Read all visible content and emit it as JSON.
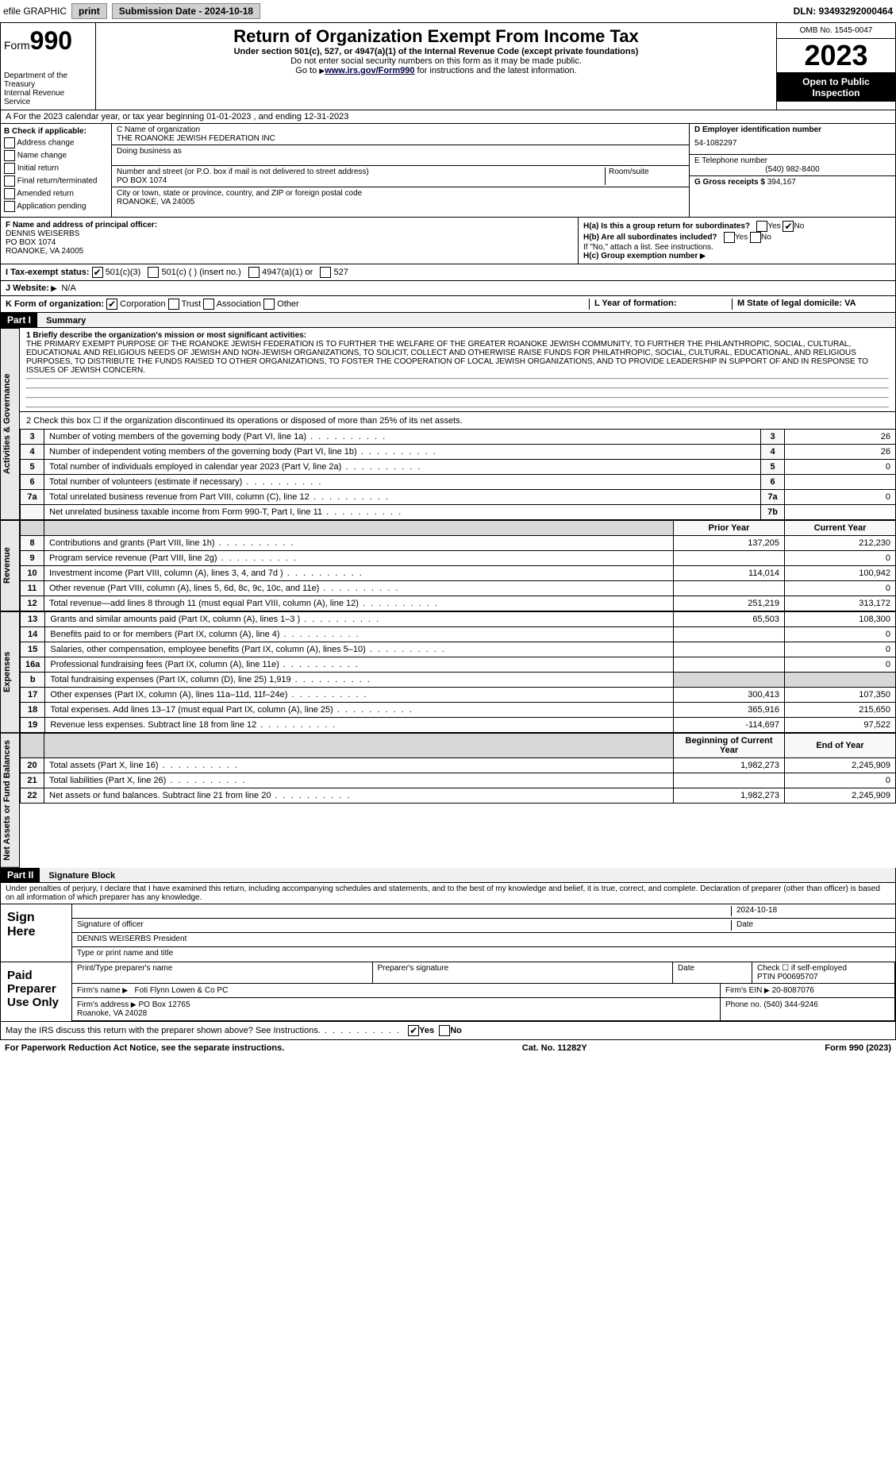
{
  "topbar": {
    "efile": "efile GRAPHIC",
    "print": "print",
    "submission_label": "Submission Date - 2024-10-18",
    "dln": "DLN: 93493292000464"
  },
  "header": {
    "form_word": "Form",
    "form_num": "990",
    "dept": "Department of the Treasury\nInternal Revenue Service",
    "title": "Return of Organization Exempt From Income Tax",
    "sub1": "Under section 501(c), 527, or 4947(a)(1) of the Internal Revenue Code (except private foundations)",
    "sub2": "Do not enter social security numbers on this form as it may be made public.",
    "sub3_pre": "Go to ",
    "sub3_link": "www.irs.gov/Form990",
    "sub3_post": " for instructions and the latest information.",
    "omb": "OMB No. 1545-0047",
    "year": "2023",
    "otp": "Open to Public Inspection"
  },
  "a_line": "A For the 2023 calendar year, or tax year beginning 01-01-2023   , and ending 12-31-2023",
  "b": {
    "title": "B Check if applicable:",
    "opts": [
      "Address change",
      "Name change",
      "Initial return",
      "Final return/terminated",
      "Amended return",
      "Application pending"
    ]
  },
  "c": {
    "name_label": "C Name of organization",
    "name": "THE ROANOKE JEWISH FEDERATION INC",
    "dba_label": "Doing business as",
    "addr_label": "Number and street (or P.O. box if mail is not delivered to street address)",
    "room_label": "Room/suite",
    "addr": "PO BOX 1074",
    "city_label": "City or town, state or province, country, and ZIP or foreign postal code",
    "city": "ROANOKE, VA  24005"
  },
  "d": {
    "label": "D Employer identification number",
    "val": "54-1082297"
  },
  "e": {
    "label": "E Telephone number",
    "val": "(540) 982-8400"
  },
  "g": {
    "label": "G Gross receipts $",
    "val": "394,167"
  },
  "f": {
    "label": "F Name and address of principal officer:",
    "name": "DENNIS WEISERBS",
    "addr1": "PO BOX 1074",
    "addr2": "ROANOKE, VA  24005"
  },
  "h": {
    "a": "H(a)  Is this a group return for subordinates?",
    "b": "H(b)  Are all subordinates included?",
    "bnote": "If \"No,\" attach a list. See instructions.",
    "c": "H(c)  Group exemption number",
    "yes": "Yes",
    "no": "No"
  },
  "i": {
    "label": "I    Tax-exempt status:",
    "o1": "501(c)(3)",
    "o2": "501(c) (  ) (insert no.)",
    "o3": "4947(a)(1) or",
    "o4": "527"
  },
  "j": {
    "label": "J   Website:",
    "val": "N/A"
  },
  "k": {
    "label": "K Form of organization:",
    "o1": "Corporation",
    "o2": "Trust",
    "o3": "Association",
    "o4": "Other"
  },
  "l": {
    "label": "L Year of formation:"
  },
  "m": {
    "label": "M State of legal domicile: VA"
  },
  "part1": {
    "hdr": "Part I",
    "title": "Summary",
    "tab_ag": "Activities & Governance",
    "tab_rev": "Revenue",
    "tab_exp": "Expenses",
    "tab_na": "Net Assets or Fund Balances",
    "l1_label": "1  Briefly describe the organization's mission or most significant activities:",
    "l1": "THE PRIMARY EXEMPT PURPOSE OF THE ROANOKE JEWISH FEDERATION IS TO FURTHER THE WELFARE OF THE GREATER ROANOKE JEWISH COMMUNITY, TO FURTHER THE PHILANTHROPIC, SOCIAL, CULTURAL, EDUCATIONAL AND RELIGIOUS NEEDS OF JEWISH AND NON-JEWISH ORGANIZATIONS, TO SOLICIT, COLLECT AND OTHERWISE RAISE FUNDS FOR PHILATHROPIC, SOCIAL, CULTURAL, EDUCATIONAL, AND RELIGIOUS PURPOSES, TO DISTRIBUTE THE FUNDS RAISED TO OTHER ORGANIZATIONS, TO FOSTER THE COOPERATION OF LOCAL JEWISH ORGANIZATIONS, AND TO PROVIDE LEADERSHIP IN SUPPORT OF AND IN RESPONSE TO ISSUES OF JEWISH CONCERN.",
    "l2": "2   Check this box   ☐   if the organization discontinued its operations or disposed of more than 25% of its net assets.",
    "rows_ag": [
      {
        "n": "3",
        "d": "Number of voting members of the governing body (Part VI, line 1a)",
        "rn": "3",
        "v": "26"
      },
      {
        "n": "4",
        "d": "Number of independent voting members of the governing body (Part VI, line 1b)",
        "rn": "4",
        "v": "26"
      },
      {
        "n": "5",
        "d": "Total number of individuals employed in calendar year 2023 (Part V, line 2a)",
        "rn": "5",
        "v": "0"
      },
      {
        "n": "6",
        "d": "Total number of volunteers (estimate if necessary)",
        "rn": "6",
        "v": ""
      },
      {
        "n": "7a",
        "d": "Total unrelated business revenue from Part VIII, column (C), line 12",
        "rn": "7a",
        "v": "0"
      },
      {
        "n": "",
        "d": "Net unrelated business taxable income from Form 990-T, Part I, line 11",
        "rn": "7b",
        "v": ""
      }
    ],
    "col_prior": "Prior Year",
    "col_curr": "Current Year",
    "rows_rev": [
      {
        "n": "8",
        "d": "Contributions and grants (Part VIII, line 1h)",
        "p": "137,205",
        "c": "212,230"
      },
      {
        "n": "9",
        "d": "Program service revenue (Part VIII, line 2g)",
        "p": "",
        "c": "0"
      },
      {
        "n": "10",
        "d": "Investment income (Part VIII, column (A), lines 3, 4, and 7d )",
        "p": "114,014",
        "c": "100,942"
      },
      {
        "n": "11",
        "d": "Other revenue (Part VIII, column (A), lines 5, 6d, 8c, 9c, 10c, and 11e)",
        "p": "",
        "c": "0"
      },
      {
        "n": "12",
        "d": "Total revenue—add lines 8 through 11 (must equal Part VIII, column (A), line 12)",
        "p": "251,219",
        "c": "313,172"
      }
    ],
    "rows_exp": [
      {
        "n": "13",
        "d": "Grants and similar amounts paid (Part IX, column (A), lines 1–3 )",
        "p": "65,503",
        "c": "108,300"
      },
      {
        "n": "14",
        "d": "Benefits paid to or for members (Part IX, column (A), line 4)",
        "p": "",
        "c": "0"
      },
      {
        "n": "15",
        "d": "Salaries, other compensation, employee benefits (Part IX, column (A), lines 5–10)",
        "p": "",
        "c": "0"
      },
      {
        "n": "16a",
        "d": "Professional fundraising fees (Part IX, column (A), line 11e)",
        "p": "",
        "c": "0"
      },
      {
        "n": "b",
        "d": "Total fundraising expenses (Part IX, column (D), line 25) 1,919",
        "p": "shade",
        "c": "shade"
      },
      {
        "n": "17",
        "d": "Other expenses (Part IX, column (A), lines 11a–11d, 11f–24e)",
        "p": "300,413",
        "c": "107,350"
      },
      {
        "n": "18",
        "d": "Total expenses. Add lines 13–17 (must equal Part IX, column (A), line 25)",
        "p": "365,916",
        "c": "215,650"
      },
      {
        "n": "19",
        "d": "Revenue less expenses. Subtract line 18 from line 12",
        "p": "-114,697",
        "c": "97,522"
      }
    ],
    "col_beg": "Beginning of Current Year",
    "col_end": "End of Year",
    "rows_na": [
      {
        "n": "20",
        "d": "Total assets (Part X, line 16)",
        "p": "1,982,273",
        "c": "2,245,909"
      },
      {
        "n": "21",
        "d": "Total liabilities (Part X, line 26)",
        "p": "",
        "c": "0"
      },
      {
        "n": "22",
        "d": "Net assets or fund balances. Subtract line 21 from line 20",
        "p": "1,982,273",
        "c": "2,245,909"
      }
    ]
  },
  "part2": {
    "hdr": "Part II",
    "title": "Signature Block",
    "decl": "Under penalties of perjury, I declare that I have examined this return, including accompanying schedules and statements, and to the best of my knowledge and belief, it is true, correct, and complete. Declaration of preparer (other than officer) is based on all information of which preparer has any knowledge.",
    "sign_here": "Sign Here",
    "sig_officer": "Signature of officer",
    "sig_date_val": "2024-10-18",
    "sig_date": "Date",
    "sig_name": "DENNIS WEISERBS President",
    "sig_type": "Type or print name and title",
    "paid": "Paid Preparer Use Only",
    "prep_name_label": "Print/Type preparer's name",
    "prep_sig_label": "Preparer's signature",
    "prep_date_label": "Date",
    "prep_self": "Check ☐ if self-employed",
    "ptin_label": "PTIN",
    "ptin": "P00695707",
    "firm_name_label": "Firm's name",
    "firm_name": "Foti Flynn Lowen & Co PC",
    "firm_ein_label": "Firm's EIN",
    "firm_ein": "20-8087076",
    "firm_addr_label": "Firm's address",
    "firm_addr": "PO Box 12765\nRoanoke, VA  24028",
    "firm_phone_label": "Phone no.",
    "firm_phone": "(540) 344-9246",
    "may_irs": "May the IRS discuss this return with the preparer shown above? See Instructions."
  },
  "footer": {
    "pra": "For Paperwork Reduction Act Notice, see the separate instructions.",
    "cat": "Cat. No. 11282Y",
    "form": "Form 990 (2023)"
  }
}
